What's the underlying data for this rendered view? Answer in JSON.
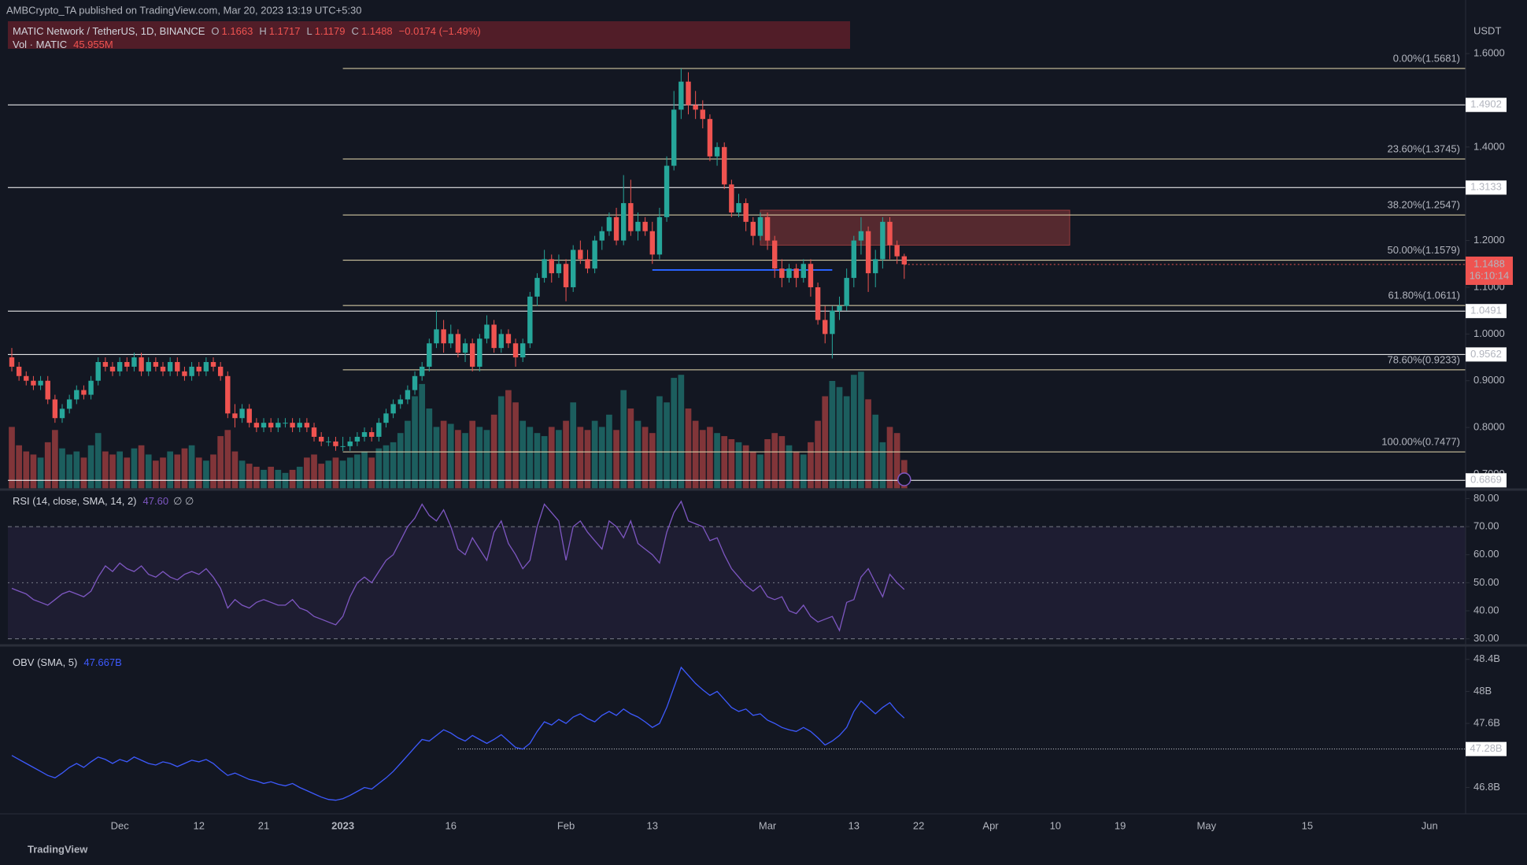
{
  "header": {
    "published": "AMBCrypto_TA published on TradingView.com, Mar 20, 2023 13:19 UTC+5:30",
    "symbol": "MATIC Network / TetherUS, 1D, BINANCE",
    "o": "O",
    "h": "H",
    "l": "L",
    "c": "C",
    "change": "−0.0174 (−1.49%)",
    "volume_title": "Vol · MATIC",
    "volume_label": "45.955M",
    "rsi_title": "RSI (14, close, SMA, 14, 2)",
    "rsi_label": "47.60",
    "rsi_extra": "∅ ∅",
    "obv_title": "OBV (SMA, 5)",
    "obv_label": "47.667B",
    "currency": "USDT",
    "countdown": "16:10:14",
    "logo": "TradingView"
  },
  "chart_data": {
    "type": "candlestick",
    "xlim": [
      "2022-11-16",
      "2023-06-06"
    ],
    "xticks": [
      {
        "value": "2022-12-01",
        "label": "Dec"
      },
      {
        "value": "2022-12-12",
        "label": "12"
      },
      {
        "value": "2022-12-21",
        "label": "21"
      },
      {
        "value": "2023-01-01",
        "label": "2023"
      },
      {
        "value": "2023-01-16",
        "label": "16"
      },
      {
        "value": "2023-02-01",
        "label": "Feb"
      },
      {
        "value": "2023-02-13",
        "label": "13"
      },
      {
        "value": "2023-03-01",
        "label": "Mar"
      },
      {
        "value": "2023-03-13",
        "label": "13"
      },
      {
        "value": "2023-03-22",
        "label": "22"
      },
      {
        "value": "2023-04-01",
        "label": "Apr"
      },
      {
        "value": "2023-04-10",
        "label": "10"
      },
      {
        "value": "2023-04-19",
        "label": "19"
      },
      {
        "value": "2023-05-01",
        "label": "May"
      },
      {
        "value": "2023-05-15",
        "label": "15"
      },
      {
        "value": "2023-06-01",
        "label": "Jun"
      }
    ],
    "ylim": [
      0.67,
      1.67
    ],
    "yticks": [
      {
        "value": 1.6,
        "label": "1.6000"
      },
      {
        "value": 1.4,
        "label": "1.4000"
      },
      {
        "value": 1.2,
        "label": "1.2000"
      },
      {
        "value": 1.1,
        "label": "1.1000"
      },
      {
        "value": 1.0,
        "label": "1.0000"
      },
      {
        "value": 0.9,
        "label": "0.9000"
      },
      {
        "value": 0.8,
        "label": "0.8000"
      },
      {
        "value": 0.7,
        "label": "0.7000"
      }
    ],
    "up_color": "#26a69a",
    "down_color": "#ef5350",
    "candles": [
      [
        0.95,
        0.97,
        0.92,
        0.93
      ],
      [
        0.93,
        0.94,
        0.9,
        0.91
      ],
      [
        0.91,
        0.92,
        0.89,
        0.9
      ],
      [
        0.9,
        0.91,
        0.88,
        0.89
      ],
      [
        0.89,
        0.91,
        0.88,
        0.9
      ],
      [
        0.9,
        0.91,
        0.85,
        0.86
      ],
      [
        0.86,
        0.87,
        0.81,
        0.82
      ],
      [
        0.82,
        0.85,
        0.81,
        0.84
      ],
      [
        0.84,
        0.87,
        0.83,
        0.86
      ],
      [
        0.86,
        0.89,
        0.85,
        0.88
      ],
      [
        0.88,
        0.89,
        0.86,
        0.87
      ],
      [
        0.87,
        0.91,
        0.86,
        0.9
      ],
      [
        0.9,
        0.95,
        0.89,
        0.94
      ],
      [
        0.94,
        0.95,
        0.92,
        0.93
      ],
      [
        0.93,
        0.94,
        0.91,
        0.92
      ],
      [
        0.92,
        0.95,
        0.91,
        0.94
      ],
      [
        0.94,
        0.95,
        0.92,
        0.93
      ],
      [
        0.93,
        0.96,
        0.92,
        0.95
      ],
      [
        0.95,
        0.96,
        0.91,
        0.92
      ],
      [
        0.92,
        0.95,
        0.91,
        0.94
      ],
      [
        0.94,
        0.95,
        0.92,
        0.93
      ],
      [
        0.93,
        0.94,
        0.91,
        0.92
      ],
      [
        0.92,
        0.95,
        0.91,
        0.94
      ],
      [
        0.94,
        0.95,
        0.91,
        0.92
      ],
      [
        0.92,
        0.93,
        0.9,
        0.91
      ],
      [
        0.91,
        0.94,
        0.9,
        0.93
      ],
      [
        0.93,
        0.94,
        0.91,
        0.92
      ],
      [
        0.92,
        0.95,
        0.91,
        0.94
      ],
      [
        0.94,
        0.95,
        0.92,
        0.93
      ],
      [
        0.93,
        0.94,
        0.9,
        0.91
      ],
      [
        0.91,
        0.92,
        0.82,
        0.83
      ],
      [
        0.83,
        0.85,
        0.8,
        0.82
      ],
      [
        0.82,
        0.85,
        0.81,
        0.84
      ],
      [
        0.84,
        0.85,
        0.8,
        0.81
      ],
      [
        0.81,
        0.82,
        0.79,
        0.8
      ],
      [
        0.8,
        0.82,
        0.79,
        0.81
      ],
      [
        0.81,
        0.82,
        0.79,
        0.8
      ],
      [
        0.8,
        0.82,
        0.79,
        0.81
      ],
      [
        0.81,
        0.82,
        0.8,
        0.81
      ],
      [
        0.81,
        0.82,
        0.79,
        0.8
      ],
      [
        0.8,
        0.82,
        0.79,
        0.81
      ],
      [
        0.81,
        0.82,
        0.79,
        0.8
      ],
      [
        0.8,
        0.81,
        0.77,
        0.78
      ],
      [
        0.78,
        0.79,
        0.76,
        0.77
      ],
      [
        0.77,
        0.78,
        0.76,
        0.77
      ],
      [
        0.77,
        0.78,
        0.75,
        0.76
      ],
      [
        0.76,
        0.78,
        0.75,
        0.76
      ],
      [
        0.76,
        0.78,
        0.75,
        0.77
      ],
      [
        0.77,
        0.79,
        0.76,
        0.78
      ],
      [
        0.78,
        0.8,
        0.77,
        0.79
      ],
      [
        0.79,
        0.8,
        0.77,
        0.78
      ],
      [
        0.78,
        0.82,
        0.77,
        0.81
      ],
      [
        0.81,
        0.84,
        0.8,
        0.83
      ],
      [
        0.83,
        0.86,
        0.82,
        0.85
      ],
      [
        0.85,
        0.87,
        0.84,
        0.86
      ],
      [
        0.86,
        0.89,
        0.85,
        0.88
      ],
      [
        0.88,
        0.92,
        0.87,
        0.91
      ],
      [
        0.91,
        0.94,
        0.9,
        0.93
      ],
      [
        0.93,
        0.99,
        0.92,
        0.98
      ],
      [
        0.98,
        1.05,
        0.97,
        1.01
      ],
      [
        1.01,
        1.03,
        0.96,
        0.98
      ],
      [
        0.98,
        1.02,
        0.97,
        1.0
      ],
      [
        1.0,
        1.01,
        0.95,
        0.96
      ],
      [
        0.96,
        0.99,
        0.94,
        0.98
      ],
      [
        0.98,
        0.99,
        0.92,
        0.93
      ],
      [
        0.93,
        1.0,
        0.92,
        0.99
      ],
      [
        0.99,
        1.04,
        0.98,
        1.02
      ],
      [
        1.02,
        1.03,
        0.96,
        0.97
      ],
      [
        0.97,
        1.01,
        0.96,
        1.0
      ],
      [
        1.0,
        1.01,
        0.97,
        0.98
      ],
      [
        0.98,
        0.99,
        0.93,
        0.95
      ],
      [
        0.95,
        0.99,
        0.94,
        0.98
      ],
      [
        0.98,
        1.09,
        0.97,
        1.08
      ],
      [
        1.08,
        1.13,
        1.06,
        1.12
      ],
      [
        1.12,
        1.18,
        1.11,
        1.16
      ],
      [
        1.16,
        1.17,
        1.11,
        1.13
      ],
      [
        1.13,
        1.17,
        1.12,
        1.15
      ],
      [
        1.15,
        1.16,
        1.07,
        1.1
      ],
      [
        1.1,
        1.19,
        1.09,
        1.18
      ],
      [
        1.18,
        1.2,
        1.15,
        1.16
      ],
      [
        1.16,
        1.18,
        1.13,
        1.14
      ],
      [
        1.14,
        1.21,
        1.13,
        1.2
      ],
      [
        1.2,
        1.23,
        1.18,
        1.22
      ],
      [
        1.22,
        1.26,
        1.21,
        1.25
      ],
      [
        1.25,
        1.27,
        1.19,
        1.2
      ],
      [
        1.2,
        1.34,
        1.19,
        1.28
      ],
      [
        1.28,
        1.33,
        1.21,
        1.22
      ],
      [
        1.22,
        1.26,
        1.2,
        1.24
      ],
      [
        1.24,
        1.25,
        1.21,
        1.22
      ],
      [
        1.22,
        1.24,
        1.15,
        1.17
      ],
      [
        1.17,
        1.27,
        1.16,
        1.25
      ],
      [
        1.25,
        1.38,
        1.24,
        1.36
      ],
      [
        1.36,
        1.52,
        1.35,
        1.48
      ],
      [
        1.48,
        1.5681,
        1.46,
        1.54
      ],
      [
        1.54,
        1.56,
        1.47,
        1.49
      ],
      [
        1.49,
        1.52,
        1.46,
        1.48
      ],
      [
        1.48,
        1.5,
        1.44,
        1.46
      ],
      [
        1.46,
        1.47,
        1.37,
        1.38
      ],
      [
        1.38,
        1.41,
        1.36,
        1.4
      ],
      [
        1.4,
        1.41,
        1.31,
        1.32
      ],
      [
        1.32,
        1.33,
        1.25,
        1.26
      ],
      [
        1.26,
        1.3,
        1.25,
        1.28
      ],
      [
        1.28,
        1.29,
        1.22,
        1.24
      ],
      [
        1.24,
        1.25,
        1.19,
        1.21
      ],
      [
        1.21,
        1.26,
        1.2,
        1.25
      ],
      [
        1.25,
        1.26,
        1.18,
        1.2
      ],
      [
        1.2,
        1.21,
        1.12,
        1.14
      ],
      [
        1.14,
        1.16,
        1.1,
        1.12
      ],
      [
        1.12,
        1.15,
        1.11,
        1.14
      ],
      [
        1.14,
        1.15,
        1.1,
        1.12
      ],
      [
        1.12,
        1.16,
        1.11,
        1.15
      ],
      [
        1.15,
        1.16,
        1.08,
        1.1
      ],
      [
        1.1,
        1.11,
        1.02,
        1.03
      ],
      [
        1.03,
        1.06,
        0.98,
        1.0
      ],
      [
        1.0,
        1.06,
        0.9476,
        1.05
      ],
      [
        1.05,
        1.08,
        1.03,
        1.06
      ],
      [
        1.06,
        1.14,
        1.05,
        1.12
      ],
      [
        1.12,
        1.21,
        1.1,
        1.2
      ],
      [
        1.2,
        1.25,
        1.17,
        1.22
      ],
      [
        1.22,
        1.23,
        1.09,
        1.13
      ],
      [
        1.13,
        1.18,
        1.1,
        1.16
      ],
      [
        1.16,
        1.25,
        1.14,
        1.24
      ],
      [
        1.24,
        1.25,
        1.16,
        1.19
      ],
      [
        1.19,
        1.2,
        1.15,
        1.1662
      ],
      [
        1.1663,
        1.1717,
        1.1179,
        1.1488
      ]
    ],
    "volumes": [
      100,
      70,
      60,
      55,
      50,
      75,
      95,
      65,
      55,
      60,
      50,
      70,
      90,
      60,
      55,
      60,
      50,
      65,
      70,
      55,
      45,
      50,
      60,
      55,
      65,
      70,
      50,
      45,
      55,
      85,
      95,
      60,
      45,
      40,
      35,
      30,
      35,
      30,
      25,
      30,
      35,
      50,
      55,
      40,
      45,
      50,
      45,
      50,
      55,
      60,
      50,
      65,
      70,
      75,
      90,
      110,
      150,
      170,
      130,
      100,
      110,
      105,
      95,
      90,
      110,
      100,
      95,
      120,
      150,
      160,
      140,
      110,
      100,
      90,
      85,
      100,
      95,
      110,
      140,
      100,
      95,
      110,
      100,
      120,
      95,
      160,
      130,
      110,
      100,
      90,
      150,
      140,
      180,
      185,
      130,
      110,
      95,
      100,
      90,
      85,
      80,
      75,
      70,
      60,
      55,
      80,
      90,
      85,
      70,
      60,
      55,
      75,
      110,
      150,
      175,
      165,
      150,
      185,
      190,
      145,
      120,
      75,
      100,
      90,
      45.955
    ],
    "fib_start": "2023-01-01",
    "fib_levels": [
      {
        "value": 1.5681,
        "label": "0.00%(1.5681)"
      },
      {
        "value": 1.3745,
        "label": "23.60%(1.3745)"
      },
      {
        "value": 1.2547,
        "label": "38.20%(1.2547)"
      },
      {
        "value": 1.1579,
        "label": "50.00%(1.1579)"
      },
      {
        "value": 1.0611,
        "label": "61.80%(1.0611)"
      },
      {
        "value": 0.9233,
        "label": "78.60%(0.9233)"
      },
      {
        "value": 0.7477,
        "label": "100.00%(0.7477)"
      }
    ],
    "levels": [
      1.4902,
      1.3133,
      1.0491,
      0.9562,
      0.6869
    ],
    "zone": {
      "x": [
        "2023-02-28",
        "2023-04-12"
      ],
      "y": [
        1.19,
        1.265
      ],
      "color": "#ef5350"
    },
    "support_line": {
      "x": [
        "2023-02-13",
        "2023-03-10"
      ],
      "y": 1.137,
      "color": "#2962ff"
    },
    "rsi": {
      "ylim": [
        28,
        82
      ],
      "yticks": [
        {
          "value": 80,
          "label": "80.00"
        },
        {
          "value": 70,
          "label": "70.00"
        },
        {
          "value": 60,
          "label": "60.00"
        },
        {
          "value": 50,
          "label": "50.00"
        },
        {
          "value": 40,
          "label": "40.00"
        },
        {
          "value": 30,
          "label": "30.00"
        }
      ],
      "band": [
        30,
        70
      ],
      "mid": 50,
      "color": "#7e57c2",
      "values": [
        48,
        47,
        46,
        44,
        43,
        42,
        44,
        46,
        47,
        46,
        45,
        47,
        52,
        56,
        54,
        57,
        55,
        54,
        56,
        53,
        52,
        54,
        52,
        51,
        53,
        54,
        53,
        55,
        52,
        48,
        41,
        44,
        42,
        41,
        43,
        44,
        43,
        42,
        42,
        44,
        41,
        40,
        38,
        37,
        36,
        35,
        38,
        45,
        50,
        52,
        50,
        54,
        58,
        60,
        65,
        70,
        73,
        78,
        74,
        72,
        76,
        70,
        62,
        60,
        66,
        62,
        58,
        68,
        72,
        64,
        60,
        55,
        58,
        70,
        78,
        75,
        72,
        58,
        70,
        72,
        68,
        65,
        62,
        72,
        70,
        66,
        72,
        64,
        62,
        60,
        57,
        68,
        75,
        79,
        72,
        71,
        70,
        65,
        66,
        60,
        55,
        52,
        49,
        47,
        49,
        45,
        44,
        45,
        40,
        39,
        42,
        38,
        36,
        37,
        38,
        33,
        43,
        44,
        52,
        55,
        50,
        45,
        53,
        50,
        47.6
      ]
    },
    "obv": {
      "ylim": [
        46.48,
        48.56
      ],
      "yticks": [
        {
          "value": 48.4,
          "label": "48.4B"
        },
        {
          "value": 48,
          "label": "48B"
        },
        {
          "value": 47.6,
          "label": "47.6B"
        },
        {
          "value": 46.8,
          "label": "46.8B"
        }
      ],
      "level": {
        "value": 47.28,
        "label": "47.28B",
        "start": "2023-01-17"
      },
      "color": "#3d5afe",
      "values": [
        47.2,
        47.15,
        47.1,
        47.05,
        47.0,
        46.95,
        46.92,
        46.98,
        47.05,
        47.1,
        47.05,
        47.12,
        47.18,
        47.15,
        47.1,
        47.15,
        47.12,
        47.18,
        47.14,
        47.1,
        47.08,
        47.12,
        47.1,
        47.06,
        47.1,
        47.14,
        47.12,
        47.15,
        47.1,
        47.02,
        46.95,
        46.98,
        46.94,
        46.9,
        46.88,
        46.85,
        46.87,
        46.84,
        46.82,
        46.85,
        46.8,
        46.76,
        46.72,
        46.68,
        46.65,
        46.64,
        46.66,
        46.7,
        46.75,
        46.8,
        46.78,
        46.85,
        46.92,
        47.0,
        47.1,
        47.2,
        47.3,
        47.4,
        47.38,
        47.45,
        47.52,
        47.48,
        47.42,
        47.38,
        47.45,
        47.4,
        47.35,
        47.4,
        47.46,
        47.38,
        47.3,
        47.28,
        47.35,
        47.5,
        47.62,
        47.58,
        47.65,
        47.6,
        47.68,
        47.72,
        47.66,
        47.62,
        47.7,
        47.75,
        47.7,
        47.78,
        47.72,
        47.68,
        47.62,
        47.55,
        47.6,
        47.8,
        48.05,
        48.3,
        48.2,
        48.1,
        48.02,
        47.95,
        48.0,
        47.9,
        47.8,
        47.75,
        47.78,
        47.7,
        47.72,
        47.64,
        47.6,
        47.55,
        47.52,
        47.5,
        47.55,
        47.5,
        47.42,
        47.33,
        47.38,
        47.45,
        47.55,
        47.75,
        47.88,
        47.8,
        47.72,
        47.8,
        47.86,
        47.75,
        47.667
      ]
    }
  }
}
